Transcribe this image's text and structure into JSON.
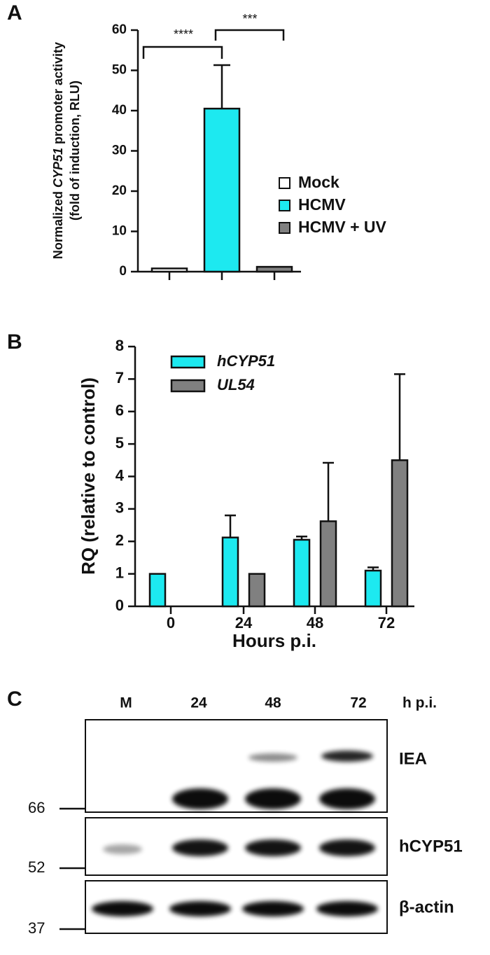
{
  "panels": [
    "A",
    "B",
    "C"
  ],
  "chart_data": [
    {
      "type": "bar",
      "ylabel": {
        "line1": [
          "Normalized",
          "CYP51",
          "promoter activity"
        ],
        "line2": "(fold of induction, RLU)"
      },
      "series": [
        {
          "name": "Mock",
          "color": "#ffffff",
          "values": [
            0.8
          ],
          "errors": [
            null
          ]
        },
        {
          "name": "HCMV",
          "color": "#1de9f0",
          "values": [
            40.5
          ],
          "errors": [
            10.8
          ]
        },
        {
          "name": "HCMV + UV",
          "color": "#808080",
          "values": [
            1.2
          ],
          "errors": [
            null
          ]
        }
      ],
      "annotations": [
        "****",
        "***"
      ],
      "ylim": [
        0,
        60
      ],
      "yticks": [
        0,
        10,
        20,
        30,
        40,
        50,
        60
      ]
    },
    {
      "type": "bar",
      "categories": [
        "0",
        "24",
        "48",
        "72"
      ],
      "xlabel": "Hours p.i.",
      "ylabel": "RQ (relative to control)",
      "series": [
        {
          "name": "hCYP51",
          "color": "#1de9f0",
          "values": [
            1,
            2.12,
            2.05,
            1.1
          ],
          "errors": [
            null,
            0.68,
            0.1,
            0.1
          ]
        },
        {
          "name": "UL54",
          "color": "#808080",
          "values": [
            null,
            1,
            2.62,
            4.5
          ],
          "errors": [
            null,
            null,
            1.8,
            2.65
          ]
        }
      ],
      "ylim": [
        0,
        8
      ],
      "yticks": [
        0,
        1,
        2,
        3,
        4,
        5,
        6,
        7,
        8
      ]
    }
  ],
  "blot": {
    "lanes": [
      "M",
      "24",
      "48",
      "72"
    ],
    "unit": "h p.i.",
    "rows": [
      "IEA",
      "hCYP51",
      "β-actin"
    ],
    "markers": [
      66,
      52,
      37
    ]
  }
}
